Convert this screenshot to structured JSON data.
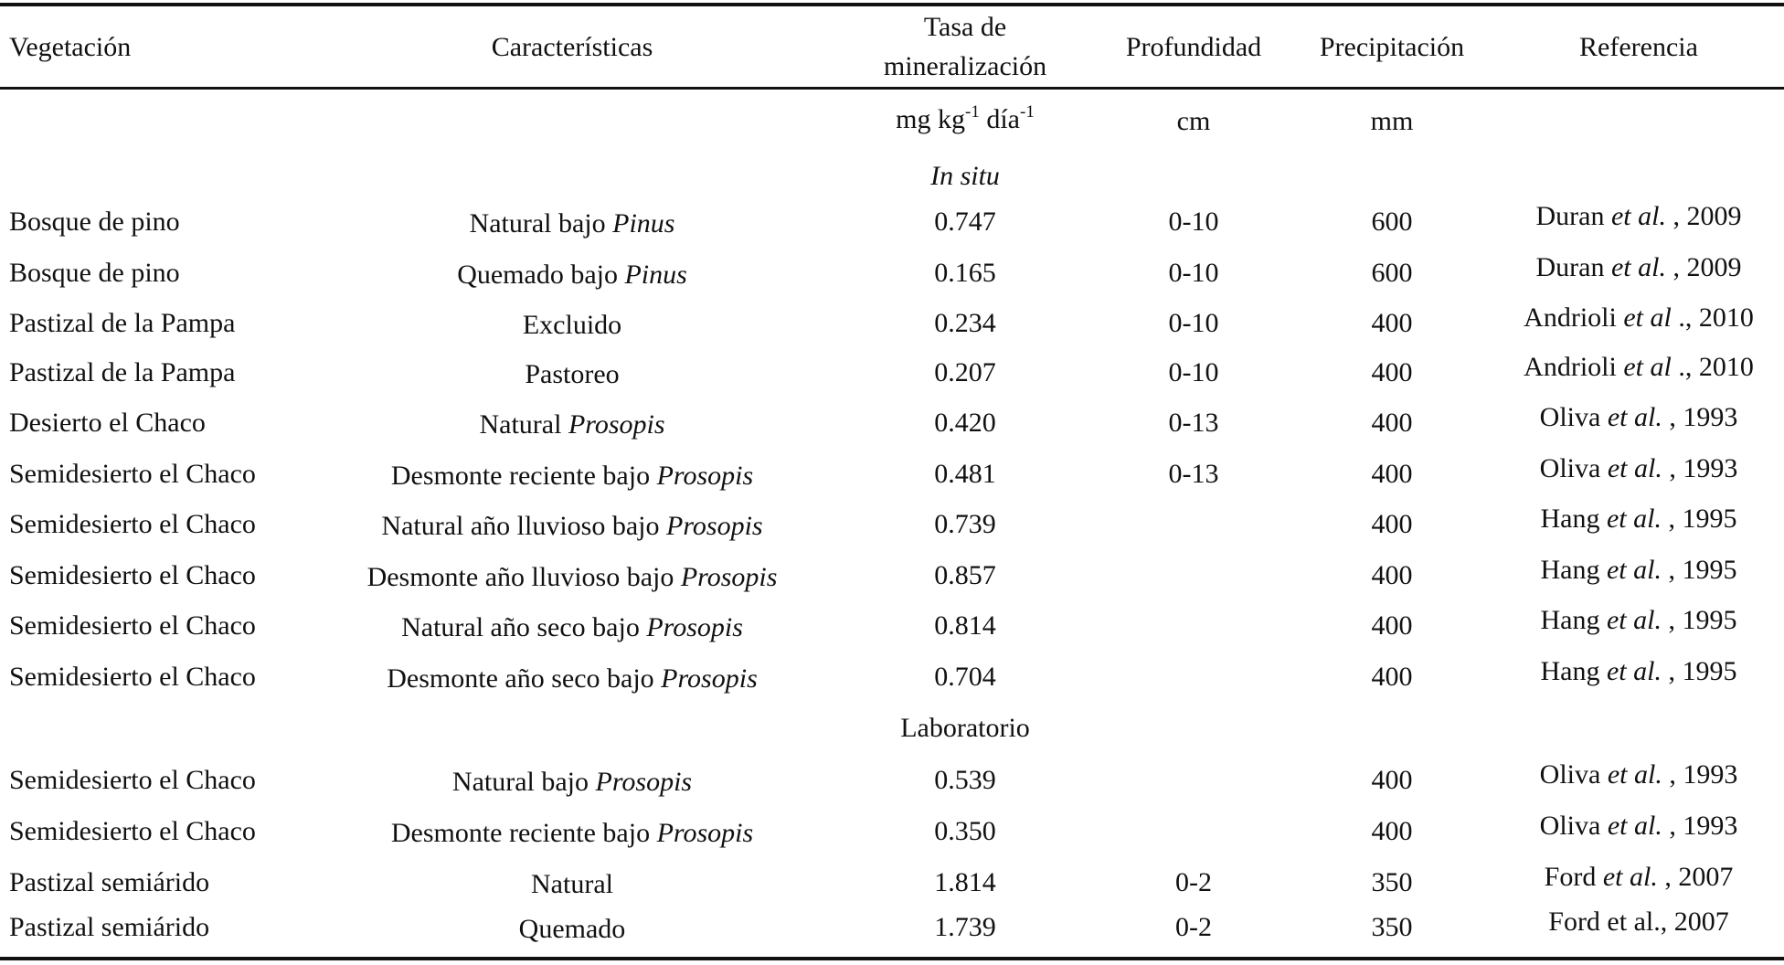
{
  "header": {
    "vegetation": "Vegetación",
    "characteristics": "Características",
    "rate": [
      "Tasa de",
      "mineralización"
    ],
    "depth": "Profundidad",
    "precipitation": "Precipitación",
    "reference": "Referencia"
  },
  "units": {
    "rate": [
      "mg kg",
      "-1",
      "día",
      "-1"
    ],
    "depth": "cm",
    "precipitation": "mm"
  },
  "sections": [
    {
      "title": "In situ",
      "rows": [
        {
          "vegetation": "Bosque de pino",
          "characteristics": [
            "Natural bajo",
            "Pinus"
          ],
          "rate": "0.747",
          "depth": "0-10",
          "precipitation": 600,
          "reference": [
            "Duran",
            "et al.",
            ", 2009"
          ]
        },
        {
          "vegetation": "Bosque de pino",
          "characteristics": [
            "Quemado bajo",
            "Pinus"
          ],
          "rate": "0.165",
          "depth": "0-10",
          "precipitation": 600,
          "reference": [
            "Duran",
            "et al.",
            ", 2009"
          ]
        },
        {
          "vegetation": "Pastizal de la Pampa",
          "characteristics": [
            "Excluido"
          ],
          "rate": "0.234",
          "depth": "0-10",
          "precipitation": 400,
          "reference": [
            "Andrioli",
            "et al",
            "., 2010"
          ]
        },
        {
          "vegetation": "Pastizal de la Pampa",
          "characteristics": [
            "Pastoreo"
          ],
          "rate": "0.207",
          "depth": "0-10",
          "precipitation": 400,
          "reference": [
            "Andrioli",
            "et al",
            "., 2010"
          ]
        },
        {
          "vegetation": "Desierto el Chaco",
          "characteristics": [
            "Natural",
            "Prosopis"
          ],
          "rate": "0.420",
          "depth": "0-13",
          "precipitation": 400,
          "reference": [
            "Oliva",
            "et al.",
            ", 1993"
          ]
        },
        {
          "vegetation": "Semidesierto el Chaco",
          "characteristics": [
            "Desmonte reciente bajo",
            "Prosopis"
          ],
          "rate": "0.481",
          "depth": "0-13",
          "precipitation": 400,
          "reference": [
            "Oliva",
            "et al.",
            ", 1993"
          ]
        },
        {
          "vegetation": "Semidesierto el Chaco",
          "characteristics": [
            "Natural año lluvioso bajo",
            "Prosopis"
          ],
          "rate": "0.739",
          "depth": null,
          "precipitation": 400,
          "reference": [
            "Hang",
            "et al.",
            ", 1995"
          ]
        },
        {
          "vegetation": "Semidesierto el Chaco",
          "characteristics": [
            "Desmonte año lluvioso bajo",
            "Prosopis"
          ],
          "rate": "0.857",
          "depth": null,
          "precipitation": 400,
          "reference": [
            "Hang",
            "et al.",
            ", 1995"
          ]
        },
        {
          "vegetation": "Semidesierto el Chaco",
          "characteristics": [
            "Natural año seco bajo",
            "Prosopis"
          ],
          "rate": "0.814",
          "depth": null,
          "precipitation": 400,
          "reference": [
            "Hang",
            "et al.",
            ", 1995"
          ]
        },
        {
          "vegetation": "Semidesierto el Chaco",
          "characteristics": [
            "Desmonte año seco bajo",
            "Prosopis"
          ],
          "rate": "0.704",
          "depth": null,
          "precipitation": 400,
          "reference": [
            "Hang",
            "et al.",
            ", 1995"
          ]
        }
      ]
    },
    {
      "title": "Laboratorio",
      "rows": [
        {
          "vegetation": "Semidesierto el Chaco",
          "characteristics": [
            "Natural bajo",
            "Prosopis"
          ],
          "rate": "0.539",
          "depth": null,
          "precipitation": 400,
          "reference": [
            "Oliva",
            "et al.",
            ", 1993"
          ]
        },
        {
          "vegetation": "Semidesierto el Chaco",
          "characteristics": [
            "Desmonte reciente bajo",
            "Prosopis"
          ],
          "rate": "0.350",
          "depth": null,
          "precipitation": 400,
          "reference": [
            "Oliva",
            "et al.",
            ", 1993"
          ]
        },
        {
          "vegetation": "Pastizal semiárido",
          "characteristics": [
            "Natural"
          ],
          "rate": "1.814",
          "depth": "0-2",
          "precipitation": 350,
          "reference": [
            "Ford",
            "et al.",
            ", 2007"
          ]
        },
        {
          "vegetation": "Pastizal semiárido",
          "characteristics": [
            "Quemado"
          ],
          "rate": "1.739",
          "depth": "0-2",
          "precipitation": 350,
          "reference": [
            "Ford et al., 2007"
          ]
        }
      ]
    }
  ]
}
